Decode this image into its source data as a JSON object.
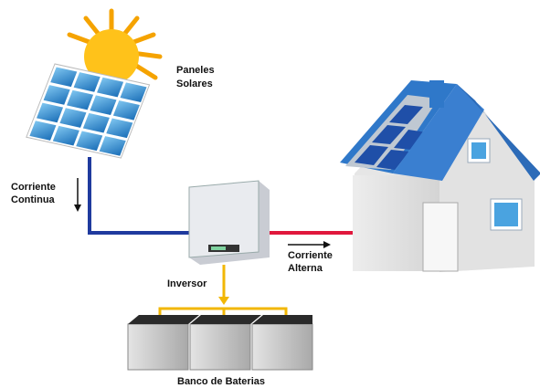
{
  "labels": {
    "panels": [
      "Paneles",
      "Solares"
    ],
    "dc": [
      "Corriente",
      "Continua"
    ],
    "inverter": "Inversor",
    "ac": [
      "Corriente",
      "Alterna"
    ],
    "batteries": "Banco de Baterias"
  }
}
